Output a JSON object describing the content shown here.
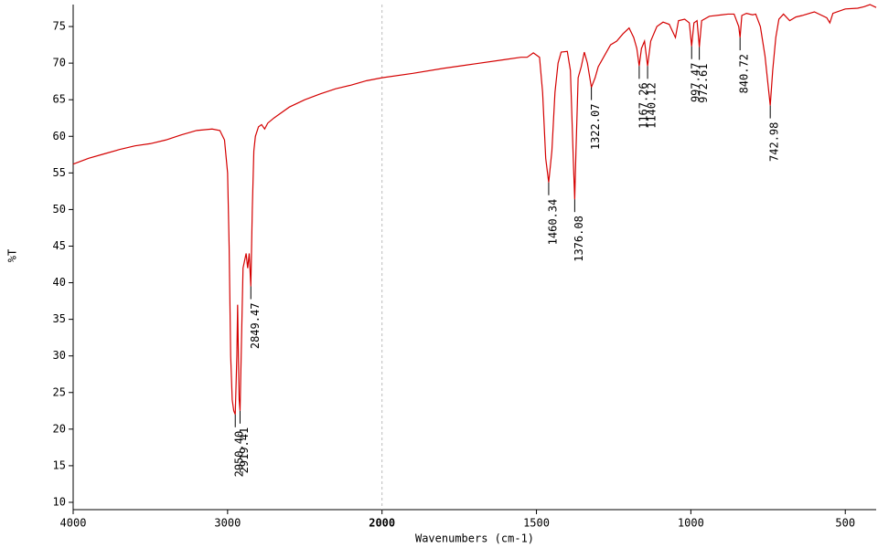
{
  "chart_data": {
    "type": "line",
    "x_label": "Wavenumbers (cm-1)",
    "y_label": "%T",
    "xlim": [
      4000,
      400
    ],
    "ylim": [
      9,
      78
    ],
    "x_break": 2000,
    "x_break_expansion": 2,
    "xticks": [
      4000,
      3000,
      2000,
      1500,
      1000,
      500
    ],
    "yticks": [
      10,
      15,
      20,
      25,
      30,
      35,
      40,
      45,
      50,
      55,
      60,
      65,
      70,
      75
    ],
    "color": "#d40000",
    "x": [
      4000,
      3900,
      3800,
      3700,
      3600,
      3500,
      3400,
      3300,
      3200,
      3100,
      3050,
      3020,
      3000,
      2990,
      2980,
      2970,
      2960,
      2950.4,
      2940,
      2935,
      2930,
      2925,
      2919.4,
      2910,
      2900,
      2890,
      2880,
      2870,
      2860,
      2849.5,
      2840,
      2830,
      2820,
      2800,
      2780,
      2760,
      2740,
      2700,
      2600,
      2500,
      2400,
      2300,
      2200,
      2100,
      2000,
      1900,
      1800,
      1700,
      1600,
      1550,
      1530,
      1510,
      1490,
      1480,
      1470,
      1460.3,
      1450,
      1440,
      1430,
      1420,
      1400,
      1390,
      1380,
      1376.1,
      1372,
      1365,
      1355,
      1345,
      1335,
      1322.1,
      1310,
      1300,
      1280,
      1260,
      1240,
      1220,
      1200,
      1185,
      1175,
      1167.3,
      1160,
      1150,
      1140.1,
      1130,
      1110,
      1090,
      1070,
      1050,
      1040,
      1020,
      1005,
      997.5,
      990,
      980,
      972.6,
      965,
      940,
      900,
      880,
      860,
      845,
      840.7,
      835,
      820,
      800,
      790,
      775,
      760,
      750,
      743,
      735,
      725,
      715,
      700,
      680,
      660,
      640,
      600,
      560,
      550,
      540,
      500,
      460,
      440,
      420,
      400
    ],
    "values": [
      56.2,
      57,
      57.6,
      58.2,
      58.7,
      59,
      59.5,
      60.2,
      60.8,
      61,
      60.8,
      59.5,
      55,
      45,
      30,
      24,
      22.5,
      22,
      30,
      37,
      30,
      24,
      22.5,
      32,
      42,
      43,
      44,
      42,
      44,
      39.5,
      50,
      58,
      60,
      61.3,
      61.6,
      61,
      61.8,
      62.5,
      64,
      65,
      65.8,
      66.5,
      67,
      67.6,
      68,
      68.6,
      69.3,
      69.9,
      70.5,
      70.8,
      70.8,
      71.4,
      70.8,
      66,
      57,
      53.7,
      58,
      66,
      70,
      71.5,
      71.6,
      69,
      56,
      51.4,
      58,
      68,
      69.5,
      71.5,
      70,
      66.7,
      68,
      69.5,
      71,
      72.5,
      73,
      74,
      74.8,
      73.5,
      72,
      69.6,
      72,
      73,
      69.6,
      73,
      75,
      75.6,
      75.3,
      73.5,
      75.8,
      76,
      75.5,
      72.3,
      75.5,
      75.8,
      72.2,
      75.8,
      76.4,
      76.6,
      76.7,
      76.7,
      75,
      73.5,
      76.5,
      76.8,
      76.6,
      76.7,
      75,
      71,
      67,
      64.2,
      69,
      73.5,
      76,
      76.7,
      75.8,
      76.3,
      76.5,
      77,
      76.2,
      75.5,
      76.8,
      77.4,
      77.5,
      77.7,
      78,
      77.6
    ],
    "annotations": [
      {
        "x": 2950.4,
        "y": 22,
        "label": "2950.40"
      },
      {
        "x": 2919.41,
        "y": 22.5,
        "label": "2919.41"
      },
      {
        "x": 2849.47,
        "y": 39.5,
        "label": "2849.47"
      },
      {
        "x": 1460.34,
        "y": 53.7,
        "label": "1460.34"
      },
      {
        "x": 1376.08,
        "y": 51.4,
        "label": "1376.08"
      },
      {
        "x": 1322.07,
        "y": 66.7,
        "label": "1322.07"
      },
      {
        "x": 1167.26,
        "y": 69.6,
        "label": "1167.26"
      },
      {
        "x": 1140.12,
        "y": 69.6,
        "label": "1140.12"
      },
      {
        "x": 997.47,
        "y": 72.3,
        "label": "997.47"
      },
      {
        "x": 972.61,
        "y": 72.2,
        "label": "972.61"
      },
      {
        "x": 840.72,
        "y": 73.5,
        "label": "840.72"
      },
      {
        "x": 742.98,
        "y": 64.2,
        "label": "742.98"
      }
    ]
  }
}
